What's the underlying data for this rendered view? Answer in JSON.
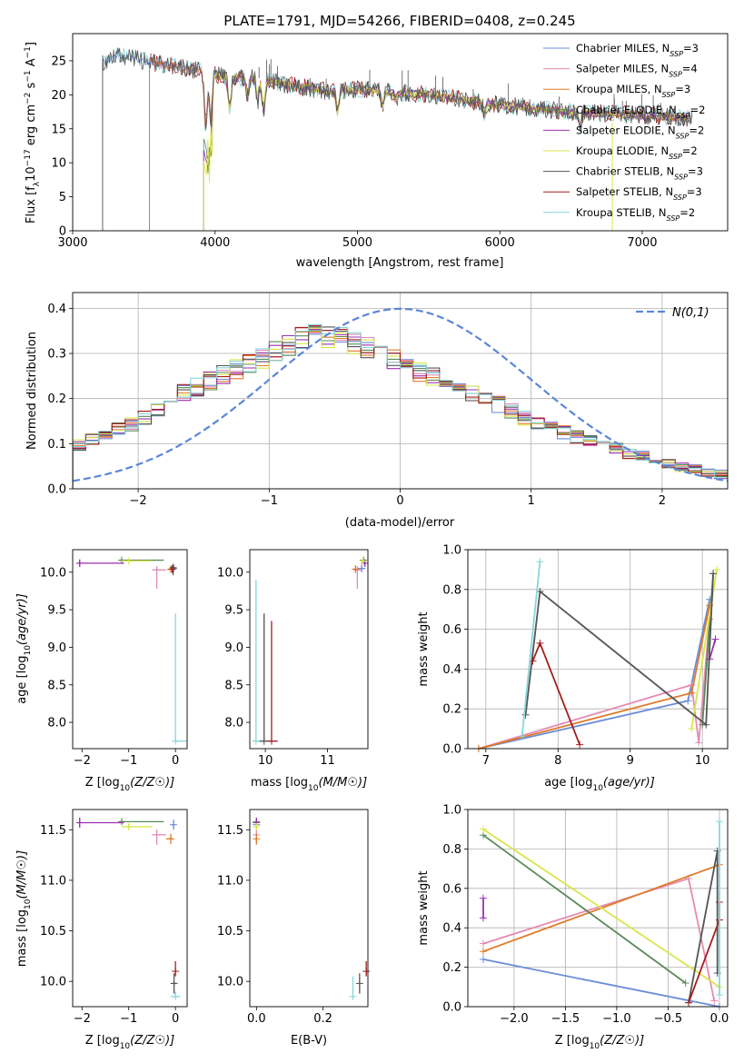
{
  "figure": {
    "title": "PLATE=1791, MJD=54266, FIBERID=0408, z=0.245"
  },
  "colors": {
    "Chabrier MILES": "#6a8cd6",
    "Salpeter MILES": "#e68ab4",
    "Kroupa MILES": "#e07a28",
    "Chabrier ELODIE": "#5a8a5a",
    "Salpeter ELODIE": "#9b2fae",
    "Kroupa ELODIE": "#d9e64a",
    "Chabrier STELIB": "#555555",
    "Salpeter STELIB": "#a31f1f",
    "Kroupa STELIB": "#86d6dc",
    "normal": "#5b86d9"
  },
  "chart_data": [
    {
      "id": "spectrum",
      "type": "line",
      "title": "PLATE=1791, MJD=54266, FIBERID=0408, z=0.245",
      "xlabel": "wavelength [Angstrom, rest frame]",
      "ylabel": "Flux [f_λ10^{-17} erg cm^{-2} s^{-1} A^{-1}]",
      "xlim": [
        3000,
        7600
      ],
      "ylim": [
        0,
        29
      ],
      "xticks": [
        3000,
        4000,
        5000,
        6000,
        7000
      ],
      "yticks": [
        0,
        5,
        10,
        15,
        20,
        25
      ],
      "grid": false,
      "legend_position": "upper right",
      "legend": [
        {
          "base": "Chabrier MILES, N",
          "sub": "SSP",
          "tail": "=3"
        },
        {
          "base": "Salpeter MILES, N",
          "sub": "SSP",
          "tail": "=4"
        },
        {
          "base": "Kroupa MILES, N",
          "sub": "SSP",
          "tail": "=3"
        },
        {
          "base": "Chabrier ELODIE, N",
          "sub": "SSP",
          "tail": "=2"
        },
        {
          "base": "Salpeter ELODIE, N",
          "sub": "SSP",
          "tail": "=2"
        },
        {
          "base": "Kroupa ELODIE, N",
          "sub": "SSP",
          "tail": "=2"
        },
        {
          "base": "Chabrier STELIB, N",
          "sub": "SSP",
          "tail": "=3"
        },
        {
          "base": "Salpeter STELIB, N",
          "sub": "SSP",
          "tail": "=3"
        },
        {
          "base": "Kroupa STELIB, N",
          "sub": "SSP",
          "tail": "=2"
        }
      ],
      "series_names": [
        "Chabrier MILES",
        "Salpeter MILES",
        "Kroupa MILES",
        "Chabrier ELODIE",
        "Salpeter ELODIE",
        "Kroupa ELODIE",
        "Chabrier STELIB",
        "Salpeter STELIB",
        "Kroupa STELIB"
      ],
      "series_start_wavelength": [
        3210,
        3540,
        3540,
        3920,
        3920,
        3920,
        3210,
        3540,
        3210
      ],
      "continuum": [
        [
          3210,
          24.5
        ],
        [
          3300,
          26.0
        ],
        [
          3500,
          25.0
        ],
        [
          3700,
          24.2
        ],
        [
          3900,
          23.5
        ],
        [
          4100,
          22.5
        ],
        [
          4300,
          22.5
        ],
        [
          4500,
          21.5
        ],
        [
          4800,
          20.5
        ],
        [
          5000,
          20.8
        ],
        [
          5500,
          20.0
        ],
        [
          6000,
          18.5
        ],
        [
          6500,
          17.5
        ],
        [
          7000,
          17.0
        ],
        [
          7350,
          16.5
        ]
      ]
    },
    {
      "id": "residuals",
      "type": "histogram",
      "xlabel": "(data-model)/error",
      "ylabel": "Normed distribution",
      "xlim": [
        -2.5,
        2.5
      ],
      "ylim": [
        0,
        0.435
      ],
      "xticks": [
        -2,
        -1,
        0,
        1,
        2
      ],
      "yticks": [
        0.0,
        0.1,
        0.2,
        0.3,
        0.4
      ],
      "grid": true,
      "legend": "N(0,1)",
      "legend_position": "upper right",
      "normal": {
        "mu": 0,
        "sigma": 1
      },
      "bin_width": 0.1,
      "envelope": [
        [
          -2.5,
          0.09
        ],
        [
          -2.0,
          0.15
        ],
        [
          -1.6,
          0.22
        ],
        [
          -1.2,
          0.27
        ],
        [
          -0.9,
          0.31
        ],
        [
          -0.7,
          0.34
        ],
        [
          -0.4,
          0.33
        ],
        [
          0.0,
          0.28
        ],
        [
          0.3,
          0.24
        ],
        [
          0.6,
          0.21
        ],
        [
          1.0,
          0.15
        ],
        [
          1.4,
          0.11
        ],
        [
          1.8,
          0.075
        ],
        [
          2.2,
          0.045
        ],
        [
          2.5,
          0.03
        ]
      ]
    },
    {
      "id": "age_vs_Z",
      "type": "scatter",
      "xlabel": "Z [log10(Z/Z☉)]",
      "ylabel": "age [log10(age/yr)]",
      "xlim": [
        -2.2,
        0.25
      ],
      "ylim": [
        7.65,
        10.3
      ],
      "xticks": [
        -2,
        -1,
        0
      ],
      "yticks": [
        8.0,
        8.5,
        9.0,
        9.5,
        10.0
      ],
      "points": [
        {
          "series": "Chabrier MILES",
          "x": -0.04,
          "y": 10.05,
          "xerr": [
            0.05,
            0.03
          ],
          "yerr": [
            0.05,
            0.05
          ]
        },
        {
          "series": "Salpeter MILES",
          "x": -0.4,
          "y": 10.03,
          "xerr": [
            0.1,
            0.2
          ],
          "yerr": [
            0.25,
            0.05
          ]
        },
        {
          "series": "Kroupa MILES",
          "x": -0.1,
          "y": 10.04,
          "xerr": [
            0.05,
            0.05
          ],
          "yerr": [
            0.05,
            0.05
          ]
        },
        {
          "series": "Chabrier ELODIE",
          "x": -1.15,
          "y": 10.16,
          "xerr": [
            0.05,
            0.9
          ],
          "yerr": [
            0.02,
            0.02
          ]
        },
        {
          "series": "Salpeter ELODIE",
          "x": -2.05,
          "y": 10.12,
          "xerr": [
            0.05,
            0.95
          ],
          "yerr": [
            0.05,
            0.05
          ]
        },
        {
          "series": "Kroupa ELODIE",
          "x": -1.0,
          "y": 10.15,
          "xerr": [
            0.15,
            0.5
          ],
          "yerr": [
            0.03,
            0.03
          ]
        },
        {
          "series": "Chabrier STELIB",
          "x": -0.05,
          "y": 10.06,
          "xerr": [
            0.05,
            0.05
          ],
          "yerr": [
            0.1,
            0.05
          ]
        },
        {
          "series": "Salpeter STELIB",
          "x": -0.07,
          "y": 10.04,
          "xerr": [
            0.03,
            0.03
          ],
          "yerr": [
            0.05,
            0.05
          ]
        },
        {
          "series": "Kroupa STELIB",
          "x": 0.0,
          "y": 7.75,
          "xerr": [
            0.02,
            0.25
          ],
          "yerr": [
            0.0,
            1.7
          ]
        }
      ]
    },
    {
      "id": "age_vs_mass",
      "type": "scatter",
      "xlabel": "mass [log10(M/M☉)]",
      "ylabel": "",
      "xlim": [
        9.75,
        11.65
      ],
      "ylim": [
        7.65,
        10.3
      ],
      "xticks": [
        10,
        11
      ],
      "yticks": [
        8.0,
        8.5,
        9.0,
        9.5,
        10.0
      ],
      "points": [
        {
          "series": "Chabrier MILES",
          "x": 11.55,
          "y": 10.05,
          "xerr": [
            0.05,
            0.05
          ],
          "yerr": [
            0.05,
            0.05
          ]
        },
        {
          "series": "Salpeter MILES",
          "x": 11.48,
          "y": 10.03,
          "xerr": [
            0.05,
            0.05
          ],
          "yerr": [
            0.25,
            0.05
          ]
        },
        {
          "series": "Kroupa MILES",
          "x": 11.45,
          "y": 10.04,
          "xerr": [
            0.04,
            0.04
          ],
          "yerr": [
            0.05,
            0.05
          ]
        },
        {
          "series": "Chabrier ELODIE",
          "x": 11.58,
          "y": 10.16,
          "xerr": [
            0.02,
            0.02
          ],
          "yerr": [
            0.02,
            0.02
          ]
        },
        {
          "series": "Salpeter ELODIE",
          "x": 11.6,
          "y": 10.12,
          "xerr": [
            0.02,
            0.02
          ],
          "yerr": [
            0.05,
            0.05
          ]
        },
        {
          "series": "Kroupa ELODIE",
          "x": 11.57,
          "y": 10.15,
          "xerr": [
            0.03,
            0.03
          ],
          "yerr": [
            0.03,
            0.03
          ]
        },
        {
          "series": "Chabrier STELIB",
          "x": 9.98,
          "y": 7.75,
          "xerr": [
            0.1,
            0.1
          ],
          "yerr": [
            0.0,
            1.7
          ]
        },
        {
          "series": "Salpeter STELIB",
          "x": 10.1,
          "y": 7.75,
          "xerr": [
            0.05,
            0.1
          ],
          "yerr": [
            0.0,
            1.6
          ]
        },
        {
          "series": "Kroupa STELIB",
          "x": 9.85,
          "y": 7.75,
          "xerr": [
            0.05,
            0.05
          ],
          "yerr": [
            0.0,
            2.15
          ]
        }
      ]
    },
    {
      "id": "massweight_vs_age",
      "type": "line",
      "xlabel": "age [log10(age/yr)]",
      "ylabel": "mass weight",
      "xlim": [
        6.75,
        10.35
      ],
      "ylim": [
        0,
        1.0
      ],
      "xticks": [
        7,
        8,
        9,
        10
      ],
      "yticks": [
        0.0,
        0.2,
        0.4,
        0.6,
        0.8,
        1.0
      ],
      "grid": true,
      "series": [
        {
          "series": "Chabrier MILES",
          "x": [
            6.9,
            9.8,
            10.1
          ],
          "y": [
            0.0,
            0.24,
            0.75
          ]
        },
        {
          "series": "Salpeter MILES",
          "x": [
            6.9,
            9.85,
            9.95,
            10.1
          ],
          "y": [
            0.0,
            0.32,
            0.03,
            0.65
          ]
        },
        {
          "series": "Kroupa MILES",
          "x": [
            6.9,
            9.85,
            10.1
          ],
          "y": [
            0.0,
            0.28,
            0.72
          ]
        },
        {
          "series": "Chabrier ELODIE",
          "x": [
            10.0,
            10.15
          ],
          "y": [
            0.12,
            0.88
          ]
        },
        {
          "series": "Salpeter ELODIE",
          "x": [
            10.1,
            10.18
          ],
          "y": [
            0.45,
            0.55
          ]
        },
        {
          "series": "Kroupa ELODIE",
          "x": [
            9.85,
            10.2
          ],
          "y": [
            0.1,
            0.9
          ]
        },
        {
          "series": "Chabrier STELIB",
          "x": [
            7.55,
            7.75,
            10.05,
            10.15
          ],
          "y": [
            0.17,
            0.79,
            0.12,
            0.88
          ]
        },
        {
          "series": "Salpeter STELIB",
          "x": [
            7.65,
            7.75,
            8.3
          ],
          "y": [
            0.44,
            0.53,
            0.02
          ]
        },
        {
          "series": "Kroupa STELIB",
          "x": [
            7.5,
            7.75
          ],
          "y": [
            0.06,
            0.94
          ]
        }
      ]
    },
    {
      "id": "mass_vs_Z",
      "type": "scatter",
      "xlabel": "Z [log10(Z/Z☉)]",
      "ylabel": "mass [log10(M/M☉)]",
      "xlim": [
        -2.2,
        0.25
      ],
      "ylim": [
        9.75,
        11.7
      ],
      "xticks": [
        -2,
        -1,
        0
      ],
      "yticks": [
        10.0,
        10.5,
        11.0,
        11.5
      ],
      "points": [
        {
          "series": "Chabrier MILES",
          "x": -0.04,
          "y": 11.55,
          "xerr": [
            0.05,
            0.03
          ],
          "yerr": [
            0.05,
            0.05
          ]
        },
        {
          "series": "Salpeter MILES",
          "x": -0.4,
          "y": 11.45,
          "xerr": [
            0.1,
            0.2
          ],
          "yerr": [
            0.1,
            0.05
          ]
        },
        {
          "series": "Kroupa MILES",
          "x": -0.1,
          "y": 11.41,
          "xerr": [
            0.1,
            0.05
          ],
          "yerr": [
            0.05,
            0.05
          ]
        },
        {
          "series": "Chabrier ELODIE",
          "x": -1.15,
          "y": 11.58,
          "xerr": [
            0.05,
            0.9
          ],
          "yerr": [
            0.02,
            0.02
          ]
        },
        {
          "series": "Salpeter ELODIE",
          "x": -2.05,
          "y": 11.57,
          "xerr": [
            0.05,
            0.95
          ],
          "yerr": [
            0.05,
            0.05
          ]
        },
        {
          "series": "Kroupa ELODIE",
          "x": -1.0,
          "y": 11.53,
          "xerr": [
            0.15,
            0.5
          ],
          "yerr": [
            0.03,
            0.03
          ]
        },
        {
          "series": "Chabrier STELIB",
          "x": -0.03,
          "y": 9.98,
          "xerr": [
            0.05,
            0.05
          ],
          "yerr": [
            0.1,
            0.1
          ]
        },
        {
          "series": "Salpeter STELIB",
          "x": 0.0,
          "y": 10.1,
          "xerr": [
            0.02,
            0.02
          ],
          "yerr": [
            0.05,
            0.1
          ]
        },
        {
          "series": "Kroupa STELIB",
          "x": 0.0,
          "y": 9.85,
          "xerr": [
            0.1,
            0.1
          ],
          "yerr": [
            0.02,
            0.05
          ]
        }
      ]
    },
    {
      "id": "mass_vs_ebv",
      "type": "scatter",
      "xlabel": "E(B-V)",
      "ylabel": "",
      "xlim": [
        -0.02,
        0.335
      ],
      "ylim": [
        9.75,
        11.7
      ],
      "xticks": [
        0.0,
        0.2
      ],
      "yticks": [
        10.0,
        10.5,
        11.0,
        11.5
      ],
      "points": [
        {
          "series": "Chabrier MILES",
          "x": 0.0,
          "y": 11.55,
          "xerr": [
            0.0,
            0.0
          ],
          "yerr": [
            0.05,
            0.05
          ]
        },
        {
          "series": "Salpeter MILES",
          "x": 0.0,
          "y": 11.45,
          "xerr": [
            0.0,
            0.0
          ],
          "yerr": [
            0.1,
            0.05
          ]
        },
        {
          "series": "Kroupa MILES",
          "x": 0.0,
          "y": 11.41,
          "xerr": [
            0.0,
            0.0
          ],
          "yerr": [
            0.05,
            0.05
          ]
        },
        {
          "series": "Chabrier ELODIE",
          "x": 0.0,
          "y": 11.58,
          "xerr": [
            0.0,
            0.0
          ],
          "yerr": [
            0.02,
            0.02
          ]
        },
        {
          "series": "Salpeter ELODIE",
          "x": 0.0,
          "y": 11.57,
          "xerr": [
            0.0,
            0.0
          ],
          "yerr": [
            0.05,
            0.05
          ]
        },
        {
          "series": "Kroupa ELODIE",
          "x": 0.0,
          "y": 11.53,
          "xerr": [
            0.0,
            0.0
          ],
          "yerr": [
            0.03,
            0.03
          ]
        },
        {
          "series": "Chabrier STELIB",
          "x": 0.31,
          "y": 9.98,
          "xerr": [
            0.0,
            0.0
          ],
          "yerr": [
            0.1,
            0.1
          ]
        },
        {
          "series": "Salpeter STELIB",
          "x": 0.33,
          "y": 10.1,
          "xerr": [
            0.0,
            0.0
          ],
          "yerr": [
            0.05,
            0.1
          ]
        },
        {
          "series": "Kroupa STELIB",
          "x": 0.29,
          "y": 9.85,
          "xerr": [
            0.0,
            0.0
          ],
          "yerr": [
            0.02,
            0.2
          ]
        }
      ]
    },
    {
      "id": "massweight_vs_Z",
      "type": "line",
      "xlabel": "Z [log10(Z/Z☉)]",
      "ylabel": "mass weight",
      "xlim": [
        -2.45,
        0.08
      ],
      "ylim": [
        0,
        1.0
      ],
      "xticks": [
        -2.0,
        -1.5,
        -1.0,
        -0.5,
        0.0
      ],
      "yticks": [
        0.0,
        0.2,
        0.4,
        0.6,
        0.8,
        1.0
      ],
      "grid": true,
      "series": [
        {
          "series": "Chabrier MILES",
          "x": [
            -2.3,
            0.0
          ],
          "y": [
            0.24,
            0.0
          ]
        },
        {
          "series": "Salpeter MILES",
          "x": [
            -2.3,
            -0.3,
            -0.05
          ],
          "y": [
            0.32,
            0.65,
            0.03
          ]
        },
        {
          "series": "Kroupa MILES",
          "x": [
            -2.3,
            0.0
          ],
          "y": [
            0.28,
            0.72
          ]
        },
        {
          "series": "Chabrier ELODIE",
          "x": [
            -2.3,
            -0.33
          ],
          "y": [
            0.87,
            0.12
          ]
        },
        {
          "series": "Salpeter ELODIE",
          "x": [
            -2.3,
            -2.3
          ],
          "y": [
            0.45,
            0.55
          ]
        },
        {
          "series": "Kroupa ELODIE",
          "x": [
            -2.3,
            0.0
          ],
          "y": [
            0.9,
            0.1
          ]
        },
        {
          "series": "Chabrier STELIB",
          "x": [
            -0.3,
            -0.02,
            -0.02
          ],
          "y": [
            0.02,
            0.79,
            0.17
          ]
        },
        {
          "series": "Salpeter STELIB",
          "x": [
            -0.3,
            0.0,
            0.0
          ],
          "y": [
            0.02,
            0.44,
            0.53
          ]
        },
        {
          "series": "Kroupa STELIB",
          "x": [
            0.0,
            0.0
          ],
          "y": [
            0.06,
            0.94
          ]
        }
      ]
    }
  ]
}
